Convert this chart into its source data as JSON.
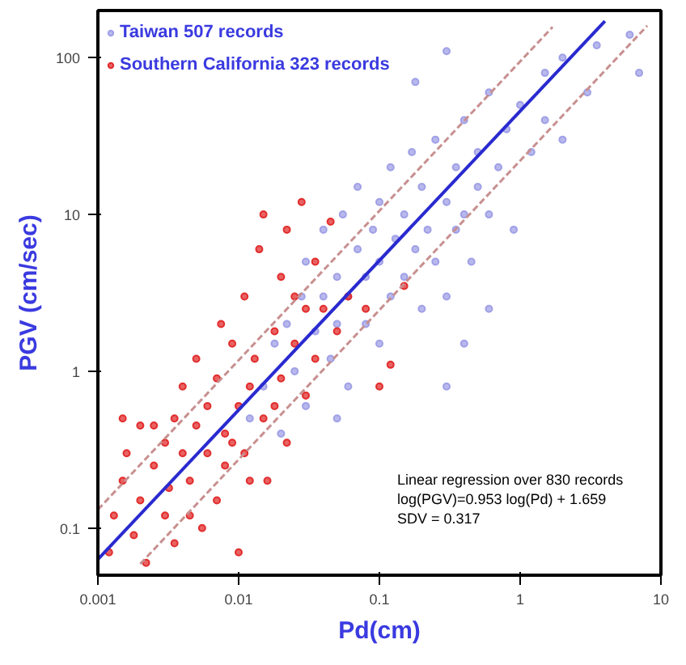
{
  "chart_data": {
    "type": "scatter",
    "xlabel": "Pd(cm)",
    "ylabel": "PGV (cm/sec)",
    "log": "xy",
    "grid": false,
    "legend": "top left",
    "xlim": [
      0.001,
      10
    ],
    "ylim": [
      0.05,
      200
    ],
    "xticks": [
      0.001,
      0.01,
      0.1,
      1,
      10
    ],
    "yticks": [
      0.1,
      1,
      10,
      100
    ],
    "annotations": [
      "Linear regression over 830 records",
      "log(PGV)=0.953 log(Pd) + 1.659",
      "SDV = 0.317"
    ],
    "series": [
      {
        "name": "Taiwan 507 records",
        "marker": "circle",
        "color": "#9a9ae6",
        "x": [
          0.012,
          0.015,
          0.018,
          0.02,
          0.022,
          0.025,
          0.028,
          0.03,
          0.03,
          0.035,
          0.04,
          0.04,
          0.045,
          0.05,
          0.05,
          0.055,
          0.06,
          0.06,
          0.07,
          0.07,
          0.08,
          0.08,
          0.09,
          0.1,
          0.1,
          0.1,
          0.12,
          0.12,
          0.13,
          0.15,
          0.15,
          0.17,
          0.18,
          0.2,
          0.2,
          0.22,
          0.25,
          0.25,
          0.3,
          0.3,
          0.35,
          0.35,
          0.4,
          0.4,
          0.45,
          0.5,
          0.5,
          0.6,
          0.6,
          0.7,
          0.8,
          0.9,
          1,
          1.2,
          1.5,
          1.5,
          2,
          2,
          3,
          3.5,
          6,
          7,
          0.05,
          0.3,
          0.18,
          0.3,
          0.4,
          0.6
        ],
        "values": [
          0.5,
          0.8,
          1.5,
          0.4,
          2,
          1,
          3,
          0.6,
          5,
          1.8,
          3,
          8,
          1.2,
          4,
          2,
          10,
          0.8,
          3,
          6,
          15,
          2,
          4,
          8,
          1.5,
          12,
          5,
          3,
          20,
          7,
          4,
          10,
          25,
          6,
          2.5,
          15,
          8,
          30,
          5,
          12,
          3,
          20,
          8,
          40,
          10,
          5,
          15,
          25,
          60,
          10,
          20,
          35,
          8,
          50,
          25,
          80,
          40,
          30,
          100,
          60,
          120,
          140,
          80,
          0.5,
          0.8,
          70,
          110,
          1.5,
          2.5
        ]
      },
      {
        "name": "Southern California 323 records",
        "marker": "circle",
        "color": "#e02020",
        "x": [
          0.0012,
          0.0013,
          0.0015,
          0.0015,
          0.0016,
          0.0018,
          0.002,
          0.002,
          0.0022,
          0.0025,
          0.0025,
          0.003,
          0.003,
          0.0032,
          0.0035,
          0.0035,
          0.004,
          0.004,
          0.0045,
          0.0045,
          0.005,
          0.005,
          0.0055,
          0.006,
          0.006,
          0.007,
          0.007,
          0.0075,
          0.008,
          0.008,
          0.009,
          0.009,
          0.01,
          0.01,
          0.011,
          0.011,
          0.012,
          0.012,
          0.013,
          0.014,
          0.015,
          0.015,
          0.016,
          0.018,
          0.018,
          0.02,
          0.02,
          0.022,
          0.022,
          0.025,
          0.025,
          0.028,
          0.03,
          0.03,
          0.035,
          0.035,
          0.04,
          0.045,
          0.05,
          0.06,
          0.08,
          0.1,
          0.12,
          0.15
        ],
        "values": [
          0.07,
          0.12,
          0.2,
          0.5,
          0.3,
          0.09,
          0.45,
          0.15,
          0.06,
          0.25,
          0.45,
          0.35,
          0.12,
          0.18,
          0.5,
          0.08,
          0.3,
          0.8,
          0.2,
          0.12,
          0.45,
          1.2,
          0.1,
          0.6,
          0.3,
          0.15,
          0.9,
          2,
          0.4,
          0.25,
          1.5,
          0.35,
          0.07,
          0.6,
          3,
          0.3,
          0.8,
          0.2,
          1.2,
          6,
          0.5,
          10,
          0.2,
          1.8,
          0.6,
          4,
          0.9,
          8,
          0.35,
          1.5,
          3,
          12,
          0.7,
          2.5,
          5,
          1.2,
          2.5,
          9,
          1.8,
          3,
          2.5,
          0.8,
          1.1,
          3.5
        ]
      },
      {
        "type": "line",
        "line_style": "solid",
        "color": "#2a2ad0",
        "x": [
          0.001,
          4
        ],
        "values": [
          0.0631,
          171
        ]
      },
      {
        "type": "line",
        "line_style": "dashed",
        "color": "#c89090",
        "x": [
          0.001,
          1.7
        ],
        "values": [
          0.131,
          157
        ]
      },
      {
        "type": "line",
        "line_style": "dashed",
        "color": "#c89090",
        "x": [
          0.002,
          8
        ],
        "values": [
          0.059,
          160
        ]
      }
    ]
  }
}
